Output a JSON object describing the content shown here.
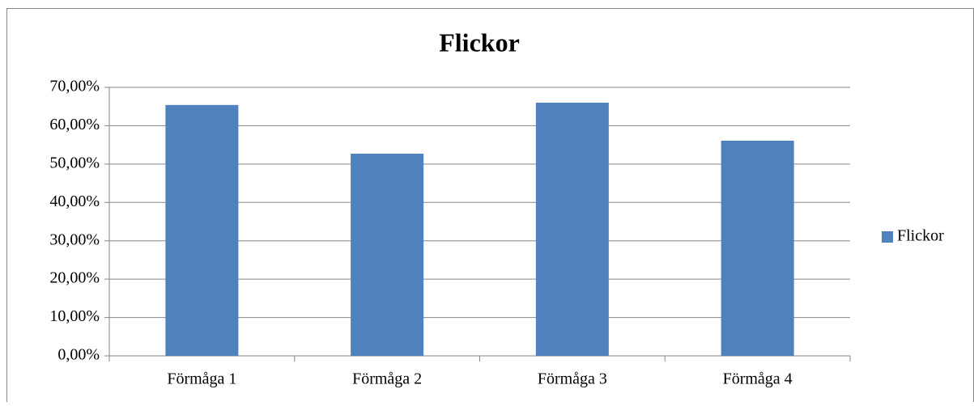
{
  "chart_data": {
    "type": "bar",
    "title": "Flickor",
    "categories": [
      "Förmåga 1",
      "Förmåga 2",
      "Förmåga 3",
      "Förmåga 4"
    ],
    "series": [
      {
        "name": "Flickor",
        "color": "#4f81bd",
        "values": [
          65.4,
          52.7,
          66.0,
          56.1
        ]
      }
    ],
    "ylim": [
      0,
      70
    ],
    "yticks": [
      {
        "value": 0,
        "label": "0,00%"
      },
      {
        "value": 10,
        "label": "10,00%"
      },
      {
        "value": 20,
        "label": "20,00%"
      },
      {
        "value": 30,
        "label": "30,00%"
      },
      {
        "value": 40,
        "label": "40,00%"
      },
      {
        "value": 50,
        "label": "50,00%"
      },
      {
        "value": 60,
        "label": "60,00%"
      },
      {
        "value": 70,
        "label": "70,00%"
      }
    ],
    "grid": true,
    "legend": "right"
  }
}
